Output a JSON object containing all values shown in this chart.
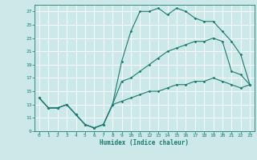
{
  "xlabel": "Humidex (Indice chaleur)",
  "bg_color": "#cce8e8",
  "grid_color": "#ffffff",
  "line_color": "#1a7a6e",
  "xlim": [
    -0.5,
    23.5
  ],
  "ylim": [
    9,
    28
  ],
  "xticks": [
    0,
    1,
    2,
    3,
    4,
    5,
    6,
    7,
    8,
    9,
    10,
    11,
    12,
    13,
    14,
    15,
    16,
    17,
    18,
    19,
    20,
    21,
    22,
    23
  ],
  "yticks": [
    9,
    11,
    13,
    15,
    17,
    19,
    21,
    23,
    25,
    27
  ],
  "line1_x": [
    0,
    1,
    2,
    3,
    4,
    5,
    6,
    7,
    8,
    9,
    10,
    11,
    12,
    13,
    14,
    15,
    16,
    17,
    18,
    19,
    20,
    21,
    22,
    23
  ],
  "line1_y": [
    14.0,
    12.5,
    12.5,
    13.0,
    11.5,
    10.0,
    9.5,
    10.0,
    13.0,
    19.5,
    24.0,
    27.0,
    27.0,
    27.5,
    26.5,
    27.5,
    27.0,
    26.0,
    25.5,
    25.5,
    24.0,
    22.5,
    20.5,
    16.0
  ],
  "line2_x": [
    0,
    1,
    2,
    3,
    4,
    5,
    6,
    7,
    8,
    9,
    10,
    11,
    12,
    13,
    14,
    15,
    16,
    17,
    18,
    19,
    20,
    21,
    22,
    23
  ],
  "line2_y": [
    14.0,
    12.5,
    12.5,
    13.0,
    11.5,
    10.0,
    9.5,
    10.0,
    13.0,
    16.5,
    17.0,
    18.0,
    19.0,
    20.0,
    21.0,
    21.5,
    22.0,
    22.5,
    22.5,
    23.0,
    22.5,
    18.0,
    17.5,
    16.0
  ],
  "line3_x": [
    0,
    1,
    2,
    3,
    4,
    5,
    6,
    7,
    8,
    9,
    10,
    11,
    12,
    13,
    14,
    15,
    16,
    17,
    18,
    19,
    20,
    21,
    22,
    23
  ],
  "line3_y": [
    14.0,
    12.5,
    12.5,
    13.0,
    11.5,
    10.0,
    9.5,
    10.0,
    13.0,
    13.5,
    14.0,
    14.5,
    15.0,
    15.0,
    15.5,
    16.0,
    16.0,
    16.5,
    16.5,
    17.0,
    16.5,
    16.0,
    15.5,
    16.0
  ]
}
